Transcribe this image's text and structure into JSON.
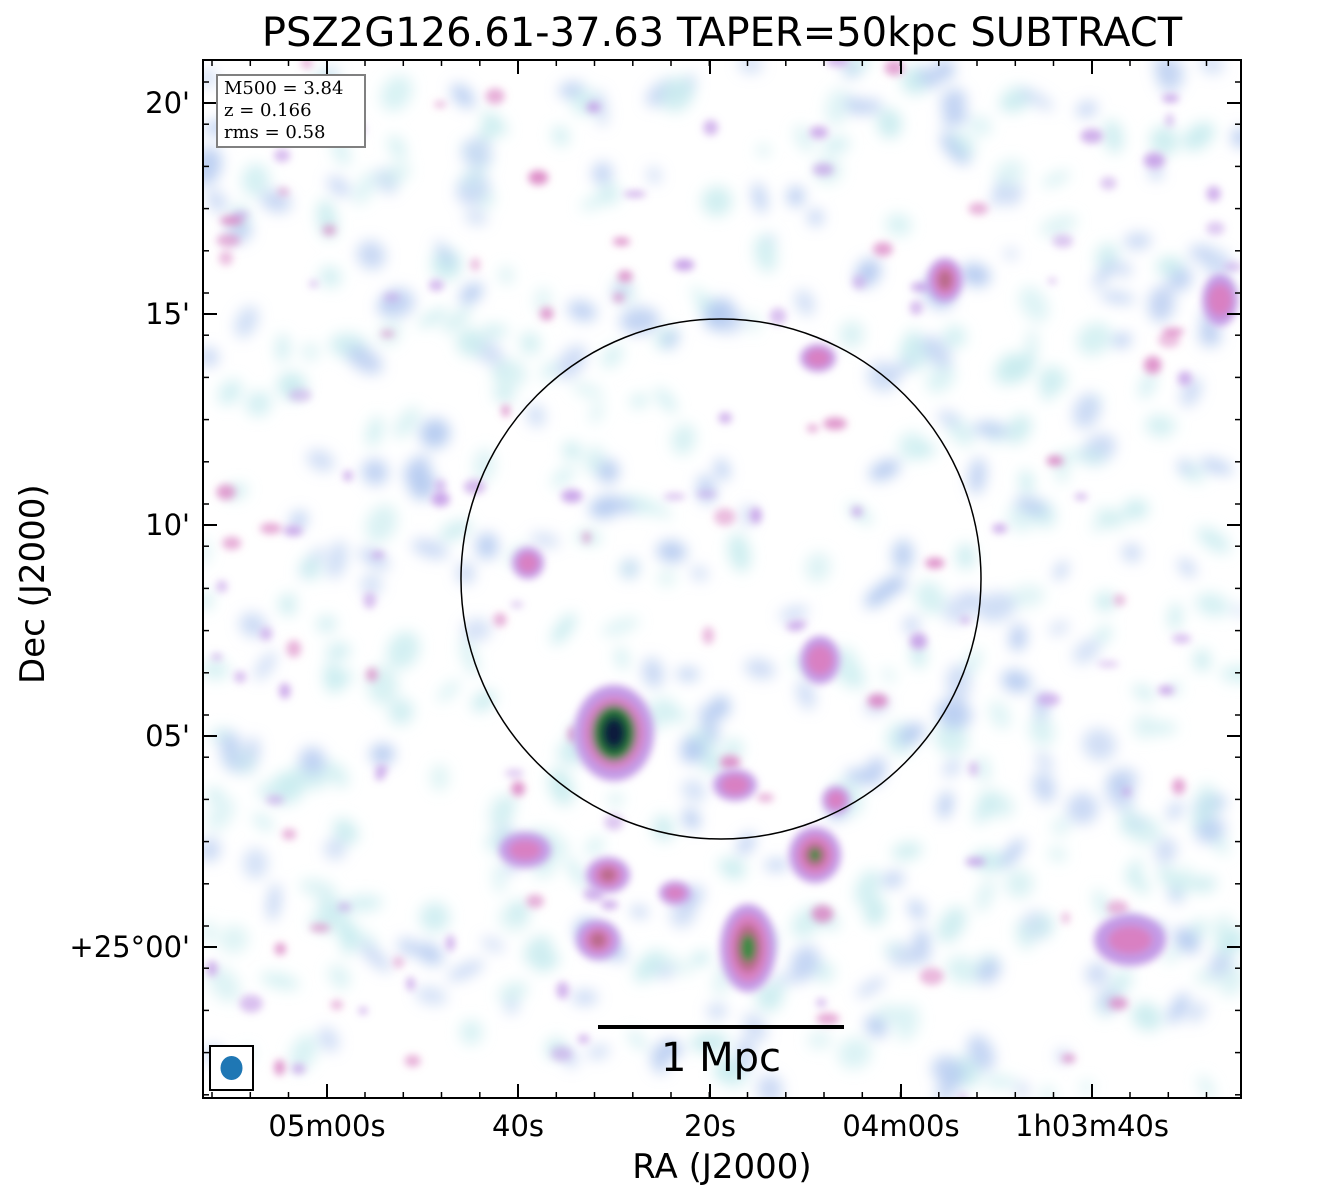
{
  "chart_data": {
    "type": "heatmap",
    "title": "PSZ2G126.61-37.63 TAPER=50kpc SUBTRACT",
    "xlabel": "RA (J2000)",
    "ylabel": "Dec (J2000)",
    "x_tick_labels": [
      "05m00s",
      "40s",
      "20s",
      "04m00s",
      "1h03m40s"
    ],
    "y_tick_labels": [
      "20'",
      "15'",
      "10'",
      "05'",
      "+25°00'"
    ],
    "info": {
      "m500": "M500 = 3.84",
      "z": "z = 0.166",
      "rms": "rms = 0.58"
    },
    "scale_bar_label": "1 Mpc",
    "colormap": [
      "#ffffff",
      "#c9ecef",
      "#b3c9f0",
      "#c39ae6",
      "#d980c2",
      "#b96a88",
      "#3b8a45",
      "#1b5e3a",
      "#0c1a3c"
    ],
    "beam_color": "#1f77b4",
    "circle_color": "#000000"
  }
}
